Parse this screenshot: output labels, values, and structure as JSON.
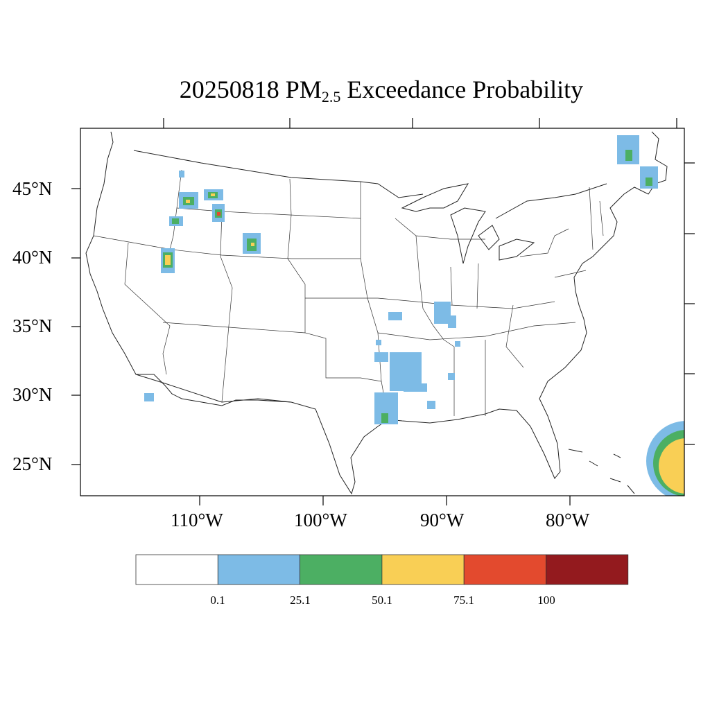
{
  "title": {
    "date": "20250818",
    "prefix": "PM",
    "subscript": "2.5",
    "suffix": "Exceedance Probability"
  },
  "axes": {
    "lat_labels": [
      "45°N",
      "40°N",
      "35°N",
      "30°N",
      "25°N"
    ],
    "lon_labels": [
      "110°W",
      "100°W",
      "90°W",
      "80°W"
    ]
  },
  "colorbar": {
    "colors": [
      "#ffffff",
      "#7dbbe6",
      "#4caf63",
      "#f9cf55",
      "#e34a2e",
      "#931a1e"
    ],
    "labels": [
      "0.1",
      "25.1",
      "50.1",
      "75.1",
      "100"
    ]
  },
  "regions": [
    {
      "location": "Northern Idaho",
      "category": "0.1"
    },
    {
      "location": "Central Idaho",
      "category": "50.1"
    },
    {
      "location": "Southwest Montana",
      "category": "50.1"
    },
    {
      "location": "Northwest Wyoming",
      "category": "75.1"
    },
    {
      "location": "Central Wyoming",
      "category": "50.1"
    },
    {
      "location": "Southwest Utah",
      "category": "50.1"
    },
    {
      "location": "Arkansas / Louisiana",
      "category": "0.1"
    },
    {
      "location": "East Texas",
      "category": "25.1"
    },
    {
      "location": "Southern Illinois / Indiana",
      "category": "0.1"
    },
    {
      "location": "Quebec",
      "category": "25.1"
    },
    {
      "location": "New Brunswick",
      "category": "25.1"
    },
    {
      "location": "Atlantic east of Florida",
      "category": "50.1"
    }
  ]
}
